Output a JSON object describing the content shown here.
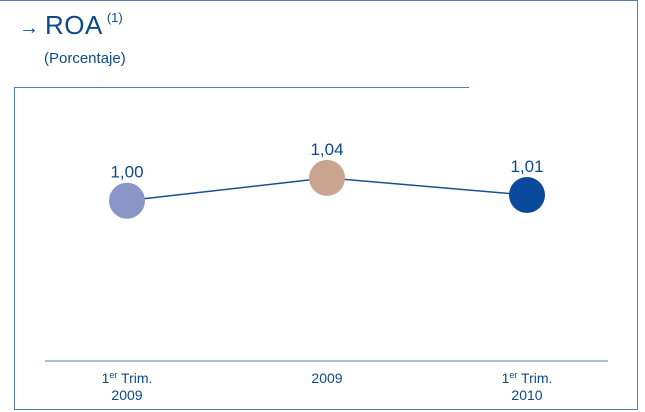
{
  "header": {
    "arrow_icon": "arrow-right-icon",
    "title": "ROA",
    "title_note": "(1)",
    "subtitle": "(Porcentaje)"
  },
  "chart_data": {
    "type": "line",
    "title": "ROA",
    "subtitle": "(Porcentaje)",
    "categories": [
      {
        "main": "1",
        "sup": "er",
        "rest": " Trim.",
        "line2": "2009"
      },
      {
        "main": "2009",
        "sup": "",
        "rest": "",
        "line2": ""
      },
      {
        "main": "1",
        "sup": "er",
        "rest": " Trim.",
        "line2": "2010"
      }
    ],
    "values": [
      1.0,
      1.04,
      1.01
    ],
    "value_labels": [
      "1,00",
      "1,04",
      "1,01"
    ],
    "point_colors": [
      "#8a96c8",
      "#c9a590",
      "#0a4a9c"
    ],
    "line_color": "#1a4f8f",
    "ylim": [
      0.72,
      1.3
    ],
    "grid": false,
    "legend": "none"
  }
}
